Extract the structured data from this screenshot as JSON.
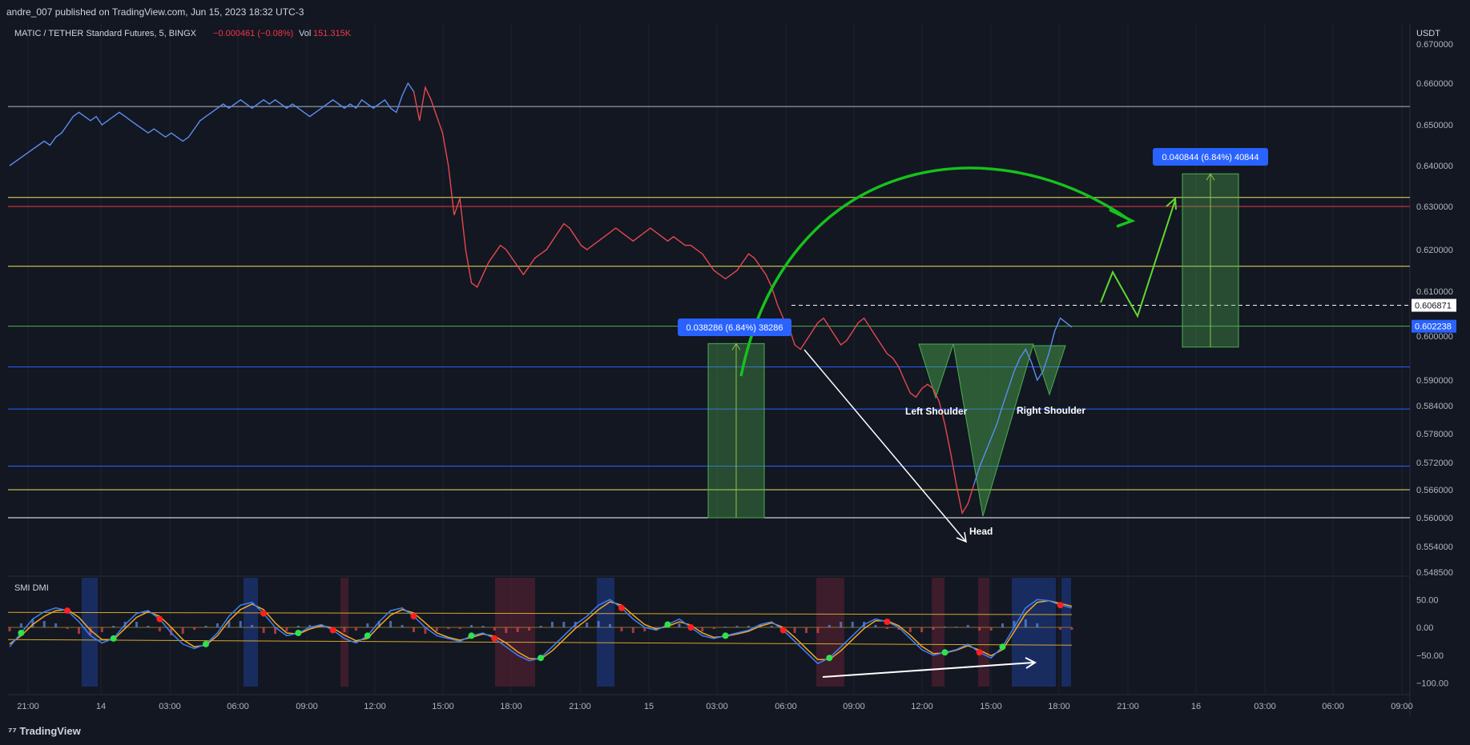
{
  "header": {
    "publisher": "andre_007 published on TradingView.com, Jun 15, 2023 18:32 UTC-3"
  },
  "legend": {
    "symbol": "MATIC / TETHER Standard Futures, 5, BINGX",
    "change": "−0.000461 (−0.08%)",
    "vol_label": "Vol",
    "vol_value": "151.315K"
  },
  "indicator": {
    "name": "SMI DMI"
  },
  "footer": {
    "logo_text": "TradingView"
  },
  "chart_data": {
    "type": "line",
    "price_axis": {
      "unit": "USDT",
      "ticks": [
        "0.670000",
        "0.660000",
        "0.650000",
        "0.640000",
        "0.630000",
        "0.620000",
        "0.610000",
        "0.600000",
        "0.590000",
        "0.584000",
        "0.578000",
        "0.572000",
        "0.566000",
        "0.560000",
        "0.554000",
        "0.548500"
      ],
      "current_price": "0.606871",
      "marked_price": "0.602238"
    },
    "time_axis": {
      "ticks": [
        "21:00",
        "14",
        "03:00",
        "06:00",
        "09:00",
        "12:00",
        "15:00",
        "18:00",
        "21:00",
        "15",
        "03:00",
        "06:00",
        "09:00",
        "12:00",
        "15:00",
        "18:00",
        "21:00",
        "16",
        "03:00",
        "06:00",
        "09:00"
      ]
    },
    "osc_axis": {
      "ticks": [
        "50.00",
        "0.00",
        "−50.00",
        "−100.00"
      ]
    },
    "levels": [
      {
        "price": 0.6544,
        "color": "#b2b5be"
      },
      {
        "price": 0.6322,
        "color": "#f2e45c"
      },
      {
        "price": 0.63,
        "color": "#f23645"
      },
      {
        "price": 0.616,
        "color": "#f2e45c"
      },
      {
        "price": 0.6022,
        "color": "#4caf50"
      },
      {
        "price": 0.593,
        "color": "#2962ff"
      },
      {
        "price": 0.5833,
        "color": "#2962ff"
      },
      {
        "price": 0.5712,
        "color": "#2962ff"
      },
      {
        "price": 0.566,
        "color": "#f2e45c"
      },
      {
        "price": 0.56,
        "color": "#ffffff"
      }
    ],
    "series": [
      {
        "values": [
          0.64,
          0.641,
          0.642,
          0.643,
          0.644,
          0.645,
          0.646,
          0.645,
          0.647,
          0.648,
          0.65,
          0.652,
          0.653,
          0.652,
          0.651,
          0.652,
          0.65,
          0.651,
          0.652,
          0.653,
          0.652,
          0.651,
          0.65,
          0.649,
          0.648,
          0.649,
          0.648,
          0.647,
          0.648,
          0.647,
          0.646,
          0.647,
          0.649,
          0.651,
          0.652,
          0.653,
          0.654,
          0.655,
          0.654,
          0.655,
          0.656,
          0.655,
          0.654,
          0.655,
          0.656,
          0.655,
          0.656,
          0.655,
          0.654,
          0.655,
          0.654,
          0.653,
          0.652,
          0.653,
          0.654,
          0.655,
          0.656,
          0.655,
          0.654,
          0.655,
          0.654,
          0.656,
          0.655,
          0.654,
          0.655,
          0.656,
          0.654,
          0.653,
          0.657,
          0.66,
          0.658,
          0.651,
          0.659,
          0.656,
          0.652,
          0.648,
          0.64,
          0.628,
          0.632,
          0.62,
          0.612,
          0.611,
          0.614,
          0.617,
          0.619,
          0.621,
          0.62,
          0.618,
          0.616,
          0.614,
          0.616,
          0.618,
          0.619,
          0.62,
          0.622,
          0.624,
          0.626,
          0.625,
          0.623,
          0.621,
          0.62,
          0.621,
          0.622,
          0.623,
          0.624,
          0.625,
          0.624,
          0.623,
          0.622,
          0.623,
          0.624,
          0.625,
          0.624,
          0.623,
          0.622,
          0.623,
          0.622,
          0.621,
          0.621,
          0.62,
          0.619,
          0.617,
          0.615,
          0.614,
          0.613,
          0.614,
          0.615,
          0.617,
          0.619,
          0.618,
          0.616,
          0.614,
          0.611,
          0.607,
          0.604,
          0.602,
          0.598,
          0.597,
          0.599,
          0.601,
          0.603,
          0.604,
          0.602,
          0.6,
          0.598,
          0.599,
          0.601,
          0.603,
          0.604,
          0.602,
          0.6,
          0.598,
          0.596,
          0.595,
          0.593,
          0.59,
          0.587,
          0.586,
          0.588,
          0.589,
          0.588,
          0.585,
          0.58,
          0.574,
          0.567,
          0.561,
          0.563,
          0.567,
          0.571,
          0.574,
          0.577,
          0.58,
          0.584,
          0.588,
          0.592,
          0.595,
          0.597,
          0.594,
          0.59,
          0.592,
          0.596,
          0.601,
          0.604,
          0.603,
          0.602
        ]
      }
    ],
    "annotations": [
      {
        "type": "measure",
        "label": "0.038286 (6.84%) 38286"
      },
      {
        "type": "measure",
        "label": "0.040844 (6.84%) 40844"
      },
      {
        "type": "text",
        "label": "Left Shoulder"
      },
      {
        "type": "text",
        "label": "Right Shoulder"
      },
      {
        "type": "text",
        "label": "Head"
      }
    ],
    "oscillator": {
      "name": "SMI DMI",
      "range": [
        -100,
        60
      ],
      "k": [
        -35,
        -10,
        15,
        28,
        35,
        30,
        10,
        -15,
        -28,
        -20,
        5,
        25,
        30,
        15,
        -10,
        -30,
        -38,
        -30,
        -10,
        20,
        40,
        45,
        25,
        0,
        -15,
        -10,
        0,
        5,
        -5,
        -20,
        -28,
        -15,
        10,
        30,
        35,
        20,
        0,
        -15,
        -20,
        -25,
        -15,
        -10,
        -20,
        -35,
        -50,
        -60,
        -55,
        -35,
        -15,
        5,
        20,
        40,
        50,
        35,
        15,
        0,
        -5,
        5,
        15,
        0,
        -15,
        -20,
        -15,
        -10,
        -5,
        5,
        10,
        -5,
        -25,
        -45,
        -65,
        -55,
        -35,
        -15,
        5,
        15,
        10,
        0,
        -20,
        -40,
        -50,
        -45,
        -40,
        -30,
        -45,
        -55,
        -35,
        0,
        35,
        50,
        48,
        40,
        35
      ],
      "d": [
        -30,
        -15,
        5,
        20,
        30,
        32,
        18,
        -5,
        -22,
        -22,
        -2,
        18,
        28,
        20,
        0,
        -22,
        -35,
        -32,
        -15,
        12,
        32,
        42,
        32,
        8,
        -10,
        -12,
        -3,
        3,
        -1,
        -14,
        -24,
        -20,
        2,
        22,
        32,
        26,
        8,
        -10,
        -18,
        -23,
        -18,
        -12,
        -16,
        -28,
        -44,
        -56,
        -57,
        -42,
        -22,
        -2,
        14,
        32,
        46,
        40,
        22,
        5,
        -3,
        2,
        10,
        4,
        -10,
        -18,
        -16,
        -12,
        -7,
        2,
        8,
        0,
        -18,
        -38,
        -58,
        -58,
        -42,
        -22,
        -2,
        12,
        12,
        3,
        -14,
        -34,
        -47,
        -46,
        -41,
        -33,
        -41,
        -51,
        -40,
        -8,
        25,
        45,
        48,
        43,
        38
      ]
    }
  }
}
